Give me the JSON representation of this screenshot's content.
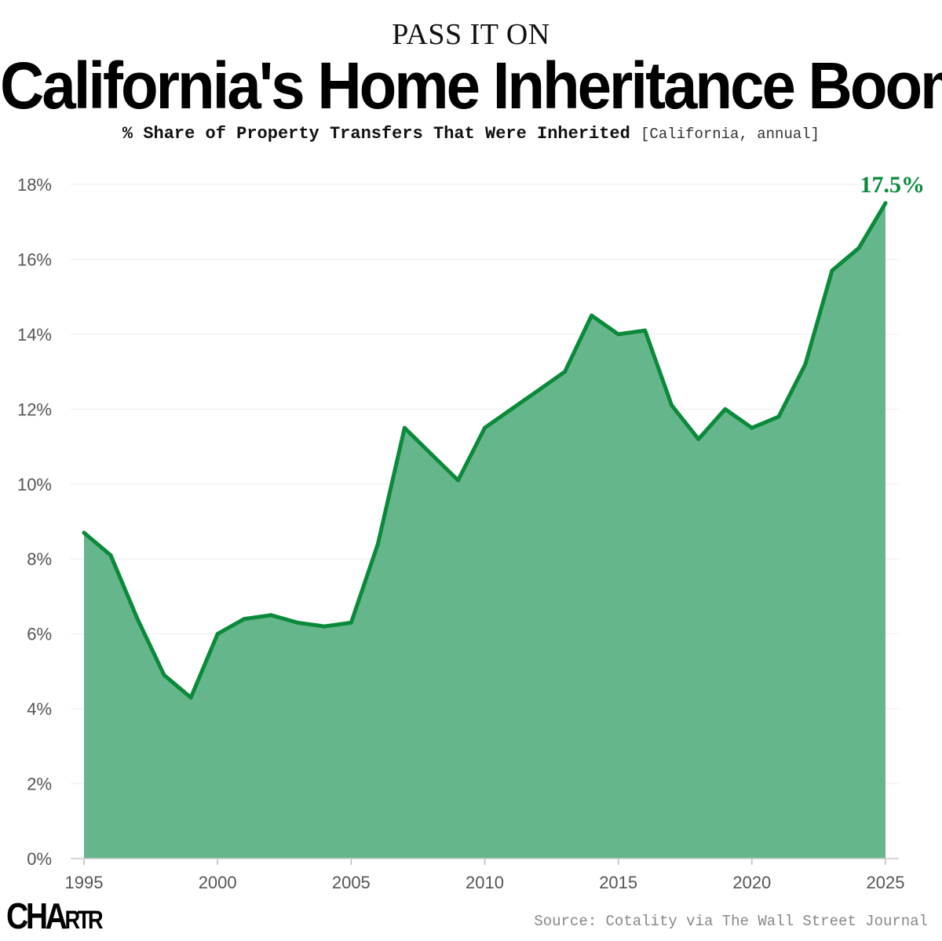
{
  "kicker": "PASS IT ON",
  "title": "California's Home Inheritance Boom",
  "subtitle": {
    "main": "% Share of Property Transfers That Were Inherited",
    "qualifier": "[California, annual]"
  },
  "source": "Source: Cotality via The Wall Street Journal",
  "logo": "CHARTR",
  "chart_data": {
    "type": "area",
    "title": "California's Home Inheritance Boom",
    "ylabel": "% Share of Property Transfers That Were Inherited",
    "ylim": [
      0,
      18
    ],
    "yticks": [
      "0%",
      "2%",
      "4%",
      "6%",
      "8%",
      "10%",
      "12%",
      "14%",
      "16%",
      "18%"
    ],
    "xticks": [
      "1995",
      "2000",
      "2005",
      "2010",
      "2015",
      "2020",
      "2025"
    ],
    "grid": true,
    "line_color": "#0a8a3a",
    "fill_color": "#66b68b",
    "x": [
      1995,
      1996,
      1997,
      1998,
      1999,
      2000,
      2001,
      2002,
      2003,
      2004,
      2005,
      2006,
      2007,
      2008,
      2009,
      2010,
      2011,
      2012,
      2013,
      2014,
      2015,
      2016,
      2017,
      2018,
      2019,
      2020,
      2021,
      2022,
      2023,
      2024,
      2025
    ],
    "values": [
      8.7,
      8.1,
      6.4,
      4.9,
      4.3,
      6.0,
      6.4,
      6.5,
      6.3,
      6.2,
      6.3,
      8.4,
      11.5,
      10.8,
      10.1,
      11.5,
      12.0,
      12.5,
      13.0,
      14.5,
      14.0,
      14.1,
      12.1,
      11.2,
      12.0,
      11.5,
      11.8,
      13.2,
      15.7,
      16.3,
      17.5
    ],
    "annotation": "17.5%"
  }
}
